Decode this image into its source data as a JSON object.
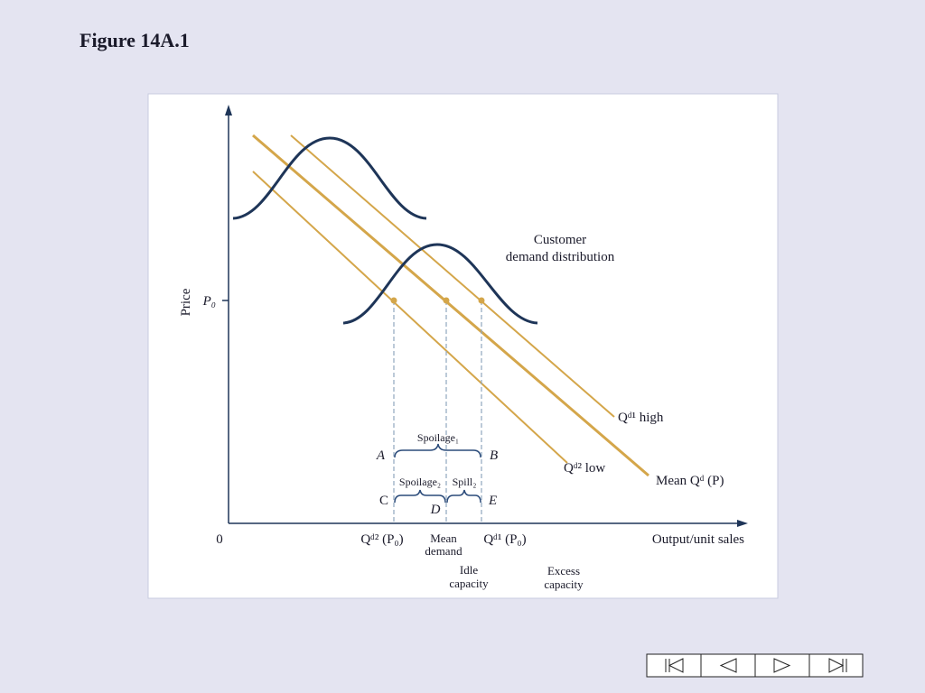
{
  "title": "Figure 14A.1",
  "figure": {
    "y_axis": "Price",
    "x_axis": "Output/unit sales",
    "origin": "0",
    "price_level": "P₀",
    "distribution_label": [
      "Customer",
      "demand distribution"
    ],
    "curves": {
      "high": "Qᵈ¹ high",
      "low": "Qᵈ² low",
      "mean": "Mean Qᵈ (P)"
    },
    "x_marks": {
      "low": "Qᵈ² (P₀)",
      "mean": [
        "Mean",
        "demand"
      ],
      "high": "Qᵈ¹ (P₀)"
    },
    "points": [
      "A",
      "B",
      "C",
      "D",
      "E"
    ],
    "braces": {
      "spoilage1": "Spoilage₁",
      "spoilage2": "Spoilage₂",
      "spill2": "Spill₂"
    },
    "capacity": {
      "idle": [
        "Idle",
        "capacity"
      ],
      "excess": [
        "Excess",
        "capacity"
      ]
    }
  }
}
